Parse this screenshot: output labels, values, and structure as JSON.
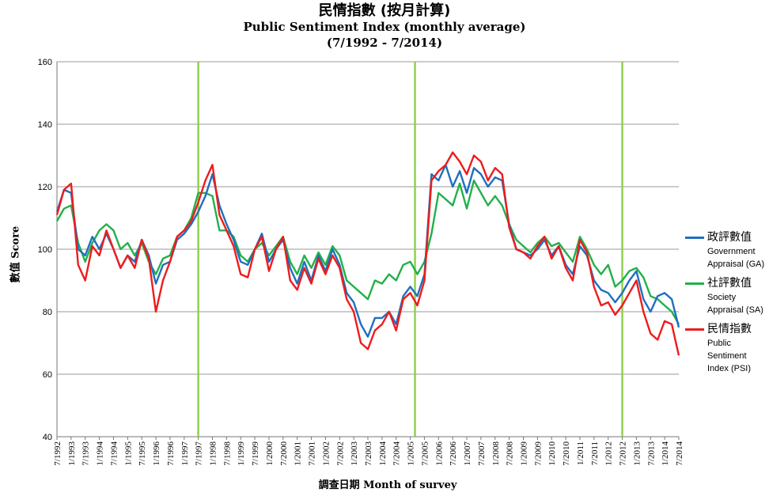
{
  "title": {
    "zh": "民情指數 (按月計算)",
    "en": "Public Sentiment Index (monthly average)",
    "range": "(7/1992 - 7/2014)"
  },
  "axis": {
    "xlabel": "調查日期 Month of survey",
    "ylabel": "數值 Score"
  },
  "legend": [
    {
      "zh": "政評數值",
      "en": "Government Appraisal (GA)",
      "color": "#1f6fc0"
    },
    {
      "zh": "社評數值",
      "en": "Society Appraisal (SA)",
      "color": "#22b04b"
    },
    {
      "zh": "民情指數",
      "en": "Public Sentiment Index (PSI)",
      "color": "#ee1c1c"
    }
  ],
  "chart_data": {
    "type": "line",
    "title": "Public Sentiment Index (monthly average)",
    "xlabel": "Month of survey",
    "ylabel": "Score",
    "ylim": [
      40,
      160
    ],
    "yticks": [
      40,
      60,
      80,
      100,
      120,
      140,
      160
    ],
    "xticks": [
      "7/1992",
      "1/1993",
      "7/1993",
      "1/1994",
      "7/1994",
      "1/1995",
      "7/1995",
      "1/1996",
      "7/1996",
      "1/1997",
      "7/1997",
      "1/1998",
      "7/1998",
      "1/1999",
      "7/1999",
      "1/2000",
      "7/2000",
      "1/2001",
      "7/2001",
      "1/2002",
      "7/2002",
      "1/2003",
      "7/2003",
      "1/2004",
      "7/2004",
      "1/2005",
      "7/2005",
      "1/2006",
      "7/2006",
      "1/2007",
      "7/2007",
      "1/2008",
      "7/2008",
      "1/2009",
      "7/2009",
      "1/2010",
      "7/2010",
      "1/2011",
      "7/2011",
      "1/2012",
      "7/2012",
      "1/2013",
      "7/2013",
      "1/2014",
      "7/2014"
    ],
    "grid": true,
    "legend_position": "right",
    "vertical_markers": [
      "7/1997",
      "3/2005",
      "7/2012"
    ],
    "series": [
      {
        "name": "政評數值 Government Appraisal (GA)",
        "color": "#1f6fc0",
        "x": [
          "7/1992",
          "10/1992",
          "1/1993",
          "4/1993",
          "7/1993",
          "10/1993",
          "1/1994",
          "4/1994",
          "7/1994",
          "10/1994",
          "1/1995",
          "4/1995",
          "7/1995",
          "10/1995",
          "1/1996",
          "4/1996",
          "7/1996",
          "10/1996",
          "1/1997",
          "4/1997",
          "7/1997",
          "10/1997",
          "1/1998",
          "4/1998",
          "7/1998",
          "10/1998",
          "1/1999",
          "4/1999",
          "7/1999",
          "10/1999",
          "1/2000",
          "4/2000",
          "7/2000",
          "10/2000",
          "1/2001",
          "4/2001",
          "7/2001",
          "10/2001",
          "1/2002",
          "4/2002",
          "7/2002",
          "10/2002",
          "1/2003",
          "4/2003",
          "7/2003",
          "10/2003",
          "1/2004",
          "4/2004",
          "7/2004",
          "10/2004",
          "1/2005",
          "4/2005",
          "7/2005",
          "10/2005",
          "1/2006",
          "4/2006",
          "7/2006",
          "10/2006",
          "1/2007",
          "4/2007",
          "7/2007",
          "10/2007",
          "1/2008",
          "4/2008",
          "7/2008",
          "10/2008",
          "1/2009",
          "4/2009",
          "7/2009",
          "10/2009",
          "1/2010",
          "4/2010",
          "7/2010",
          "10/2010",
          "1/2011",
          "4/2011",
          "7/2011",
          "10/2011",
          "1/2012",
          "4/2012",
          "7/2012",
          "10/2012",
          "1/2013",
          "4/2013",
          "7/2013",
          "10/2013",
          "1/2014",
          "4/2014",
          "7/2014"
        ],
        "values": [
          112,
          119,
          118,
          100,
          98,
          104,
          100,
          105,
          100,
          94,
          98,
          96,
          103,
          98,
          89,
          95,
          96,
          103,
          105,
          108,
          112,
          117,
          124,
          114,
          108,
          103,
          96,
          95,
          100,
          105,
          96,
          100,
          103,
          94,
          89,
          96,
          90,
          98,
          93,
          100,
          95,
          86,
          83,
          76,
          72,
          78,
          78,
          80,
          76,
          85,
          88,
          85,
          92,
          124,
          122,
          127,
          120,
          125,
          118,
          126,
          124,
          120,
          123,
          122,
          108,
          100,
          99,
          98,
          100,
          103,
          98,
          101,
          95,
          92,
          101,
          98,
          90,
          87,
          86,
          83,
          86,
          90,
          93,
          84,
          80,
          85,
          86,
          84,
          75
        ],
        "markers": null
      },
      {
        "name": "社評數值 Society Appraisal (SA)",
        "color": "#22b04b",
        "x": [
          "7/1992",
          "10/1992",
          "1/1993",
          "4/1993",
          "7/1993",
          "10/1993",
          "1/1994",
          "4/1994",
          "7/1994",
          "10/1994",
          "1/1995",
          "4/1995",
          "7/1995",
          "10/1995",
          "1/1996",
          "4/1996",
          "7/1996",
          "10/1996",
          "1/1997",
          "4/1997",
          "7/1997",
          "10/1997",
          "1/1998",
          "4/1998",
          "7/1998",
          "10/1998",
          "1/1999",
          "4/1999",
          "7/1999",
          "10/1999",
          "1/2000",
          "4/2000",
          "7/2000",
          "10/2000",
          "1/2001",
          "4/2001",
          "7/2001",
          "10/2001",
          "1/2002",
          "4/2002",
          "7/2002",
          "10/2002",
          "1/2003",
          "4/2003",
          "7/2003",
          "10/2003",
          "1/2004",
          "4/2004",
          "7/2004",
          "10/2004",
          "1/2005",
          "4/2005",
          "7/2005",
          "10/2005",
          "1/2006",
          "4/2006",
          "7/2006",
          "10/2006",
          "1/2007",
          "4/2007",
          "7/2007",
          "10/2007",
          "1/2008",
          "4/2008",
          "7/2008",
          "10/2008",
          "1/2009",
          "4/2009",
          "7/2009",
          "10/2009",
          "1/2010",
          "4/2010",
          "7/2010",
          "10/2010",
          "1/2011",
          "4/2011",
          "7/2011",
          "10/2011",
          "1/2012",
          "4/2012",
          "7/2012",
          "10/2012",
          "1/2013",
          "4/2013",
          "7/2013",
          "10/2013",
          "1/2014",
          "4/2014",
          "7/2014"
        ],
        "values": [
          109,
          113,
          114,
          102,
          96,
          102,
          106,
          108,
          106,
          100,
          102,
          98,
          102,
          96,
          92,
          97,
          98,
          104,
          106,
          110,
          118,
          118,
          117,
          106,
          106,
          104,
          98,
          96,
          100,
          102,
          98,
          101,
          104,
          96,
          92,
          98,
          94,
          99,
          95,
          101,
          98,
          90,
          88,
          86,
          84,
          90,
          89,
          92,
          90,
          95,
          96,
          92,
          96,
          105,
          118,
          116,
          114,
          121,
          113,
          122,
          118,
          114,
          117,
          114,
          108,
          103,
          101,
          99,
          102,
          104,
          101,
          102,
          99,
          96,
          104,
          100,
          95,
          92,
          95,
          88,
          90,
          93,
          94,
          91,
          85,
          84,
          82,
          80,
          76
        ],
        "markers": null
      },
      {
        "name": "民情指數 Public Sentiment Index (PSI)",
        "color": "#ee1c1c",
        "x": [
          "7/1992",
          "10/1992",
          "1/1993",
          "4/1993",
          "7/1993",
          "10/1993",
          "1/1994",
          "4/1994",
          "7/1994",
          "10/1994",
          "1/1995",
          "4/1995",
          "7/1995",
          "10/1995",
          "1/1996",
          "4/1996",
          "7/1996",
          "10/1996",
          "1/1997",
          "4/1997",
          "7/1997",
          "10/1997",
          "1/1998",
          "4/1998",
          "7/1998",
          "10/1998",
          "1/1999",
          "4/1999",
          "7/1999",
          "10/1999",
          "1/2000",
          "4/2000",
          "7/2000",
          "10/2000",
          "1/2001",
          "4/2001",
          "7/2001",
          "10/2001",
          "1/2002",
          "4/2002",
          "7/2002",
          "10/2002",
          "1/2003",
          "4/2003",
          "7/2003",
          "10/2003",
          "1/2004",
          "4/2004",
          "7/2004",
          "10/2004",
          "1/2005",
          "4/2005",
          "7/2005",
          "10/2005",
          "1/2006",
          "4/2006",
          "7/2006",
          "10/2006",
          "1/2007",
          "4/2007",
          "7/2007",
          "10/2007",
          "1/2008",
          "4/2008",
          "7/2008",
          "10/2008",
          "1/2009",
          "4/2009",
          "7/2009",
          "10/2009",
          "1/2010",
          "4/2010",
          "7/2010",
          "10/2010",
          "1/2011",
          "4/2011",
          "7/2011",
          "10/2011",
          "1/2012",
          "4/2012",
          "7/2012",
          "10/2012",
          "1/2013",
          "4/2013",
          "7/2013",
          "10/2013",
          "1/2014",
          "4/2014",
          "7/2014"
        ],
        "values": [
          111,
          119,
          121,
          95,
          90,
          101,
          98,
          106,
          100,
          94,
          98,
          94,
          103,
          97,
          80,
          90,
          96,
          104,
          106,
          109,
          115,
          122,
          127,
          111,
          106,
          101,
          92,
          91,
          100,
          104,
          93,
          100,
          104,
          90,
          87,
          94,
          89,
          97,
          92,
          98,
          94,
          84,
          80,
          70,
          68,
          74,
          76,
          80,
          74,
          84,
          86,
          82,
          90,
          122,
          125,
          127,
          131,
          128,
          124,
          130,
          128,
          122,
          126,
          124,
          107,
          100,
          99,
          97,
          101,
          104,
          97,
          101,
          94,
          90,
          103,
          99,
          88,
          82,
          83,
          79,
          82,
          86,
          90,
          80,
          73,
          71,
          77,
          76,
          66
        ],
        "markers": null
      }
    ]
  }
}
